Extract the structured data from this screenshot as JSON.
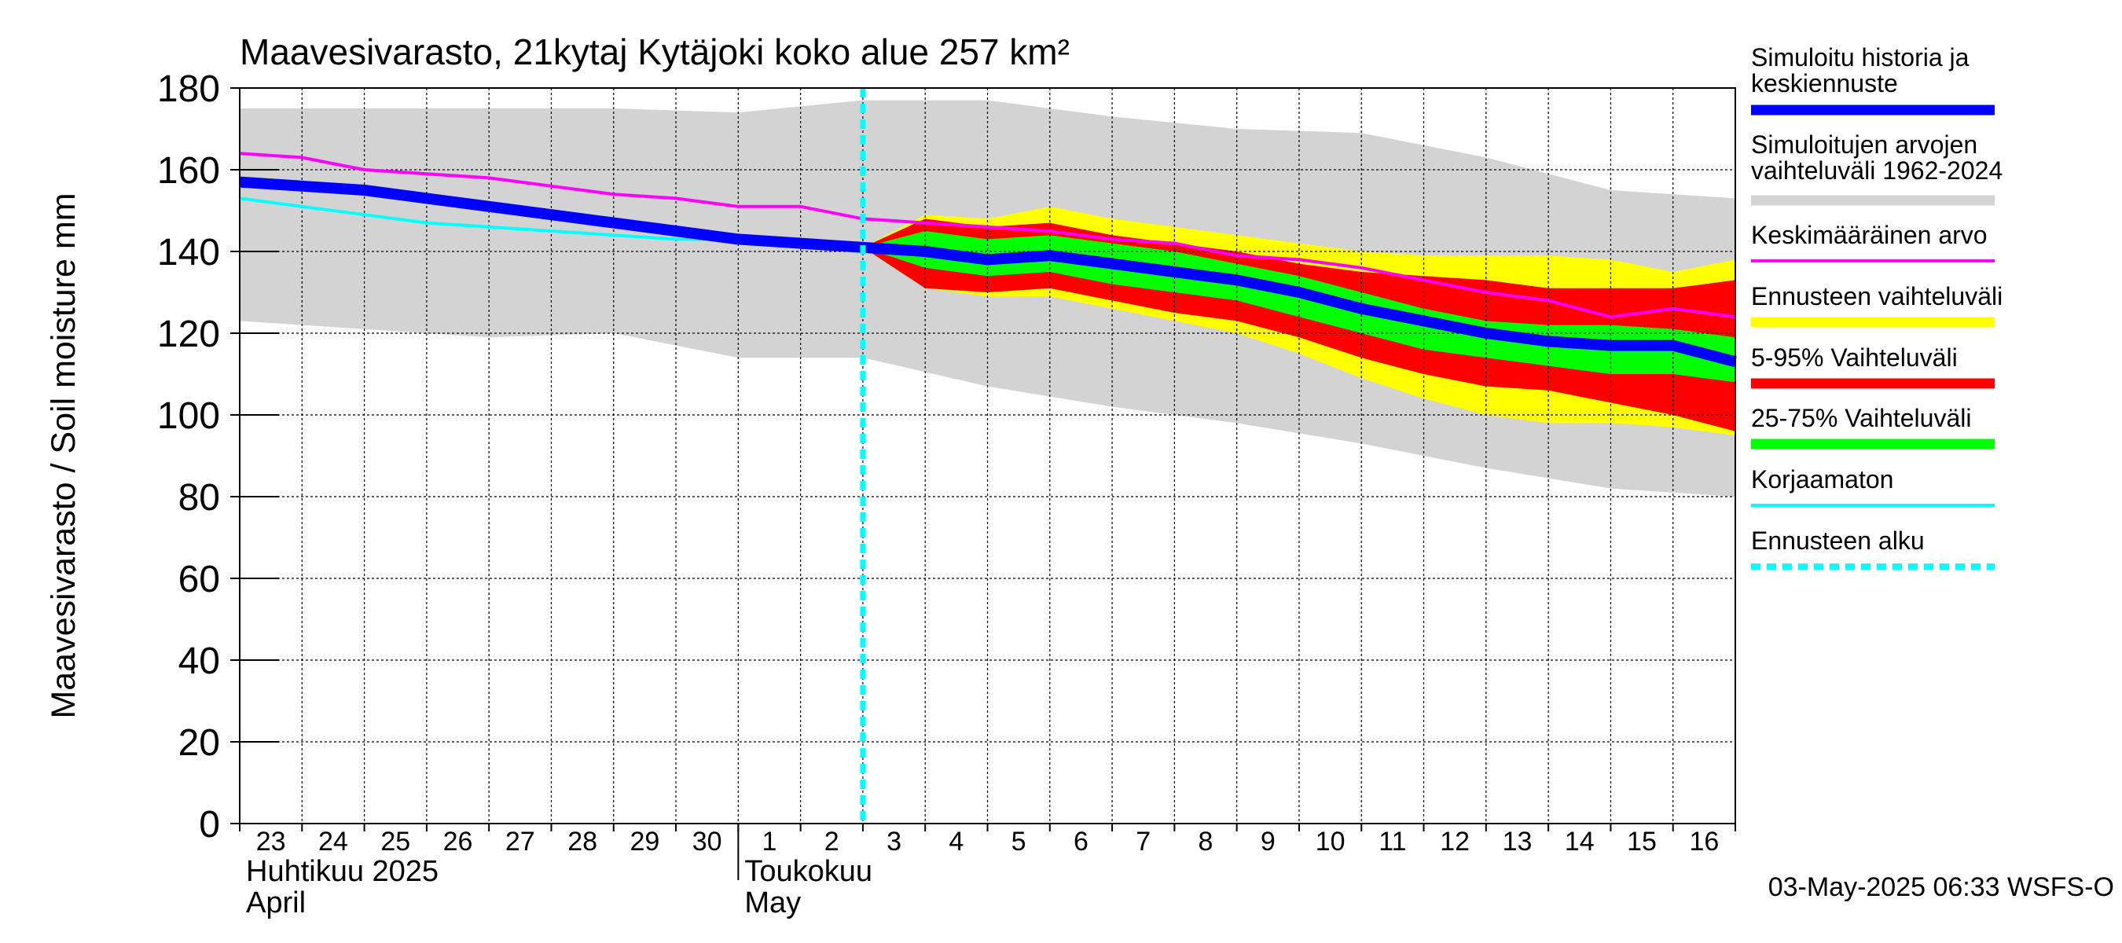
{
  "chart_data": {
    "type": "area",
    "title": "Maavesivarasto, 21kytaj Kytäjoki koko alue 257 km²",
    "ylabel": "Maavesivarasto / Soil moisture   mm",
    "xlabel": "",
    "ylim": [
      0,
      180
    ],
    "yticks": [
      0,
      20,
      40,
      60,
      80,
      100,
      120,
      140,
      160,
      180
    ],
    "grid": true,
    "x_start_day": "23 April 2025",
    "x_day_range": [
      0,
      24
    ],
    "day_labels": [
      "23",
      "24",
      "25",
      "26",
      "27",
      "28",
      "29",
      "30",
      "1",
      "2",
      "3",
      "4",
      "5",
      "6",
      "7",
      "8",
      "9",
      "10",
      "11",
      "12",
      "13",
      "14",
      "15",
      "16"
    ],
    "month_labels": [
      {
        "fi": "Huhtikuu  2025",
        "en": "April",
        "start_day": 0
      },
      {
        "fi": "Toukokuu",
        "en": "May",
        "start_day": 8
      }
    ],
    "forecast_start_day": 10.0,
    "series": [
      {
        "name": "Simuloitujen arvojen vaihteluväli 1962-2024",
        "kind": "band",
        "color": "#d3d3d3",
        "x": [
          0,
          2,
          4,
          6,
          8,
          10,
          12,
          14,
          16,
          18,
          20,
          22,
          24
        ],
        "upper": [
          175,
          175,
          175,
          175,
          174,
          177,
          177,
          173,
          170,
          169,
          163,
          155,
          153
        ],
        "lower": [
          123,
          121,
          119,
          120,
          114,
          114,
          107,
          102,
          98,
          93,
          87,
          82,
          80
        ]
      },
      {
        "name": "Ennusteen vaihteluväli",
        "kind": "band",
        "color": "#ffff00",
        "x": [
          10,
          11,
          12,
          13,
          14,
          15,
          16,
          17,
          18,
          19,
          20,
          21,
          22,
          23,
          24
        ],
        "upper": [
          141,
          149,
          148,
          151,
          148,
          146,
          144,
          142,
          140,
          139,
          139,
          139,
          138,
          135,
          138
        ],
        "lower": [
          141,
          131,
          129,
          129,
          126,
          123,
          120,
          115,
          109,
          104,
          100,
          98,
          98,
          97,
          95
        ]
      },
      {
        "name": "5-95% Vaihteluväli",
        "kind": "band",
        "color": "#ff0000",
        "x": [
          10,
          11,
          12,
          13,
          14,
          15,
          16,
          17,
          18,
          19,
          20,
          21,
          22,
          23,
          24
        ],
        "upper": [
          141,
          148,
          146,
          147,
          144,
          142,
          140,
          137,
          135,
          134,
          133,
          131,
          131,
          131,
          133
        ],
        "lower": [
          141,
          131,
          130,
          131,
          128,
          125,
          123,
          119,
          114,
          110,
          107,
          106,
          103,
          100,
          96
        ]
      },
      {
        "name": "25-75% Vaihteluväli",
        "kind": "band",
        "color": "#00ff00",
        "x": [
          10,
          11,
          12,
          13,
          14,
          15,
          16,
          17,
          18,
          19,
          20,
          21,
          22,
          23,
          24
        ],
        "upper": [
          141,
          145,
          143,
          144,
          142,
          140,
          137,
          134,
          130,
          126,
          123,
          122,
          122,
          121,
          119
        ],
        "lower": [
          141,
          136,
          134,
          135,
          132,
          130,
          128,
          124,
          120,
          116,
          114,
          112,
          110,
          110,
          108
        ]
      },
      {
        "name": "Keskimääräinen arvo",
        "kind": "line",
        "color": "#ff00ff",
        "width": 4,
        "x": [
          0,
          1,
          2,
          3,
          4,
          5,
          6,
          7,
          8,
          9,
          10,
          11,
          12,
          13,
          14,
          15,
          16,
          17,
          18,
          19,
          20,
          21,
          22,
          23,
          24
        ],
        "y": [
          164,
          163,
          160,
          159,
          158,
          156,
          154,
          153,
          151,
          151,
          148,
          147,
          146,
          145,
          143,
          142,
          139,
          138,
          136,
          133,
          130,
          128,
          124,
          126,
          124
        ]
      },
      {
        "name": "Korjaamaton",
        "kind": "line",
        "color": "#00ffff",
        "width": 4,
        "x": [
          0,
          1,
          2,
          3,
          4,
          5,
          6,
          7,
          8
        ],
        "y": [
          153,
          151,
          149,
          147,
          146,
          145,
          144,
          143,
          143
        ]
      },
      {
        "name": "Simuloitu historia ja keskiennuste",
        "kind": "line",
        "color": "#0000ff",
        "width": 14,
        "x": [
          0,
          1,
          2,
          3,
          4,
          5,
          6,
          7,
          8,
          9,
          10,
          11,
          12,
          13,
          14,
          15,
          16,
          17,
          18,
          19,
          20,
          21,
          22,
          23,
          24
        ],
        "y": [
          157,
          156,
          155,
          153,
          151,
          149,
          147,
          145,
          143,
          142,
          141,
          140,
          138,
          139,
          137,
          135,
          133,
          130,
          126,
          123,
          120,
          118,
          117,
          117,
          113
        ]
      }
    ],
    "legend": {
      "placement": "right",
      "entries": [
        {
          "label": "Simuloitu historia ja keskiennuste",
          "color": "#0000ff",
          "style": "thick"
        },
        {
          "label": "Simuloitujen arvojen vaihteluväli 1962-2024",
          "color": "#d3d3d3",
          "style": "thick"
        },
        {
          "label": "Keskimääräinen arvo",
          "color": "#ff00ff",
          "style": "thin"
        },
        {
          "label": "Ennusteen vaihteluväli",
          "color": "#ffff00",
          "style": "thick"
        },
        {
          "label": "5-95% Vaihteluväli",
          "color": "#ff0000",
          "style": "thick"
        },
        {
          "label": "25-75% Vaihteluväli",
          "color": "#00ff00",
          "style": "thick"
        },
        {
          "label": "Korjaamaton",
          "color": "#00ffff",
          "style": "thin"
        },
        {
          "label": "Ennusteen alku",
          "color": "#00ffff",
          "style": "dashed"
        }
      ]
    },
    "footer": "03-May-2025 06:33 WSFS-O"
  }
}
